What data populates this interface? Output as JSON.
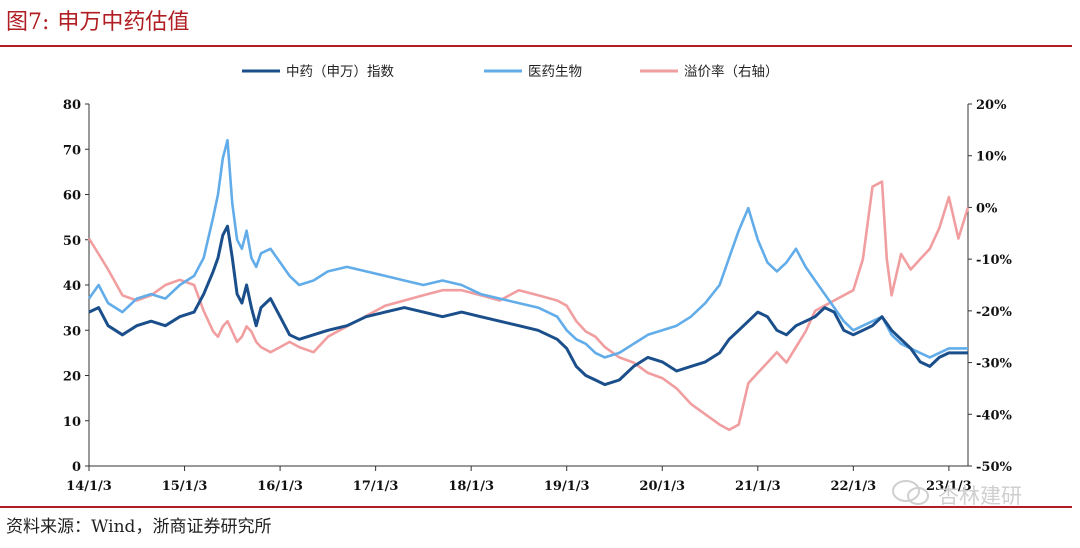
{
  "figure": {
    "number": "图7:",
    "title": "申万中药估值",
    "source": "资料来源：Wind，浙商证券研究所",
    "watermark": "杏林建研"
  },
  "colors": {
    "title": "#b01e23",
    "series_tcm": "#1a4f8b",
    "series_bio": "#62ade9",
    "series_premium": "#f19ea0"
  },
  "chart_data": {
    "type": "line",
    "x_tick_labels": [
      "14/1/3",
      "15/1/3",
      "16/1/3",
      "17/1/3",
      "18/1/3",
      "19/1/3",
      "20/1/3",
      "21/1/3",
      "22/1/3",
      "23/1/3"
    ],
    "xlim": [
      2014.0,
      2023.2
    ],
    "y_left": {
      "lim": [
        0,
        80
      ],
      "ticks": [
        0,
        10,
        20,
        30,
        40,
        50,
        60,
        70,
        80
      ]
    },
    "y_right": {
      "lim": [
        -50,
        20
      ],
      "ticks": [
        "-50%",
        "-40%",
        "-30%",
        "-20%",
        "-10%",
        "0%",
        "10%",
        "20%"
      ],
      "tick_values": [
        -50,
        -40,
        -30,
        -20,
        -10,
        0,
        10,
        20
      ]
    },
    "legend": [
      "中药（申万）指数",
      "医药生物",
      "溢价率（右轴）"
    ],
    "series": [
      {
        "name": "中药（申万）指数",
        "axis": "left",
        "x": [
          2014.0,
          2014.1,
          2014.2,
          2014.35,
          2014.5,
          2014.65,
          2014.8,
          2014.95,
          2015.1,
          2015.2,
          2015.3,
          2015.35,
          2015.4,
          2015.45,
          2015.5,
          2015.55,
          2015.6,
          2015.65,
          2015.7,
          2015.75,
          2015.8,
          2015.9,
          2016.0,
          2016.1,
          2016.2,
          2016.35,
          2016.5,
          2016.7,
          2016.9,
          2017.1,
          2017.3,
          2017.5,
          2017.7,
          2017.9,
          2018.1,
          2018.3,
          2018.5,
          2018.7,
          2018.9,
          2019.0,
          2019.1,
          2019.2,
          2019.3,
          2019.4,
          2019.55,
          2019.7,
          2019.85,
          2020.0,
          2020.15,
          2020.3,
          2020.45,
          2020.6,
          2020.7,
          2020.8,
          2020.9,
          2021.0,
          2021.1,
          2021.2,
          2021.3,
          2021.4,
          2021.5,
          2021.6,
          2021.7,
          2021.8,
          2021.9,
          2022.0,
          2022.1,
          2022.2,
          2022.3,
          2022.4,
          2022.5,
          2022.6,
          2022.7,
          2022.8,
          2022.9,
          2023.0,
          2023.1,
          2023.2
        ],
        "values": [
          34,
          35,
          31,
          29,
          31,
          32,
          31,
          33,
          34,
          38,
          43,
          46,
          51,
          53,
          46,
          38,
          36,
          40,
          35,
          31,
          35,
          37,
          33,
          29,
          28,
          29,
          30,
          31,
          33,
          34,
          35,
          34,
          33,
          34,
          33,
          32,
          31,
          30,
          28,
          26,
          22,
          20,
          19,
          18,
          19,
          22,
          24,
          23,
          21,
          22,
          23,
          25,
          28,
          30,
          32,
          34,
          33,
          30,
          29,
          31,
          32,
          33,
          35,
          34,
          30,
          29,
          30,
          31,
          33,
          30,
          28,
          26,
          23,
          22,
          24,
          25,
          25,
          25
        ]
      },
      {
        "name": "医药生物",
        "axis": "left",
        "x": [
          2014.0,
          2014.1,
          2014.2,
          2014.35,
          2014.5,
          2014.65,
          2014.8,
          2014.95,
          2015.1,
          2015.2,
          2015.3,
          2015.35,
          2015.4,
          2015.45,
          2015.5,
          2015.55,
          2015.6,
          2015.65,
          2015.7,
          2015.75,
          2015.8,
          2015.9,
          2016.0,
          2016.1,
          2016.2,
          2016.35,
          2016.5,
          2016.7,
          2016.9,
          2017.1,
          2017.3,
          2017.5,
          2017.7,
          2017.9,
          2018.1,
          2018.3,
          2018.5,
          2018.7,
          2018.9,
          2019.0,
          2019.1,
          2019.2,
          2019.3,
          2019.4,
          2019.55,
          2019.7,
          2019.85,
          2020.0,
          2020.15,
          2020.3,
          2020.45,
          2020.6,
          2020.7,
          2020.8,
          2020.9,
          2021.0,
          2021.1,
          2021.2,
          2021.3,
          2021.4,
          2021.5,
          2021.6,
          2021.7,
          2021.8,
          2021.9,
          2022.0,
          2022.1,
          2022.2,
          2022.3,
          2022.4,
          2022.5,
          2022.6,
          2022.7,
          2022.8,
          2022.9,
          2023.0,
          2023.1,
          2023.2
        ],
        "values": [
          37,
          40,
          36,
          34,
          37,
          38,
          37,
          40,
          42,
          46,
          55,
          60,
          68,
          72,
          58,
          50,
          48,
          52,
          46,
          44,
          47,
          48,
          45,
          42,
          40,
          41,
          43,
          44,
          43,
          42,
          41,
          40,
          41,
          40,
          38,
          37,
          36,
          35,
          33,
          30,
          28,
          27,
          25,
          24,
          25,
          27,
          29,
          30,
          31,
          33,
          36,
          40,
          46,
          52,
          57,
          50,
          45,
          43,
          45,
          48,
          44,
          41,
          38,
          35,
          32,
          30,
          31,
          32,
          33,
          29,
          27,
          26,
          25,
          24,
          25,
          26,
          26,
          26
        ]
      },
      {
        "name": "溢价率（右轴）",
        "axis": "right",
        "x": [
          2014.0,
          2014.1,
          2014.2,
          2014.35,
          2014.5,
          2014.65,
          2014.8,
          2014.95,
          2015.1,
          2015.2,
          2015.3,
          2015.35,
          2015.4,
          2015.45,
          2015.5,
          2015.55,
          2015.6,
          2015.65,
          2015.7,
          2015.75,
          2015.8,
          2015.9,
          2016.0,
          2016.1,
          2016.2,
          2016.35,
          2016.5,
          2016.7,
          2016.9,
          2017.1,
          2017.3,
          2017.5,
          2017.7,
          2017.9,
          2018.1,
          2018.3,
          2018.5,
          2018.7,
          2018.9,
          2019.0,
          2019.1,
          2019.2,
          2019.3,
          2019.4,
          2019.55,
          2019.7,
          2019.85,
          2020.0,
          2020.15,
          2020.3,
          2020.45,
          2020.6,
          2020.7,
          2020.8,
          2020.9,
          2021.0,
          2021.1,
          2021.2,
          2021.3,
          2021.4,
          2021.5,
          2021.6,
          2021.7,
          2021.8,
          2021.9,
          2022.0,
          2022.1,
          2022.2,
          2022.3,
          2022.35,
          2022.4,
          2022.5,
          2022.6,
          2022.7,
          2022.8,
          2022.9,
          2023.0,
          2023.1,
          2023.2
        ],
        "values": [
          -6,
          -9,
          -12,
          -17,
          -18,
          -17,
          -15,
          -14,
          -15,
          -20,
          -24,
          -25,
          -23,
          -22,
          -24,
          -26,
          -25,
          -23,
          -24,
          -26,
          -27,
          -28,
          -27,
          -26,
          -27,
          -28,
          -25,
          -23,
          -21,
          -19,
          -18,
          -17,
          -16,
          -16,
          -17,
          -18,
          -16,
          -17,
          -18,
          -19,
          -22,
          -24,
          -25,
          -27,
          -29,
          -30,
          -32,
          -33,
          -35,
          -38,
          -40,
          -42,
          -43,
          -42,
          -34,
          -32,
          -30,
          -28,
          -30,
          -27,
          -24,
          -20,
          -19,
          -18,
          -17,
          -16,
          -10,
          4,
          5,
          -10,
          -17,
          -9,
          -12,
          -10,
          -8,
          -4,
          2,
          -6,
          0
        ]
      }
    ]
  }
}
